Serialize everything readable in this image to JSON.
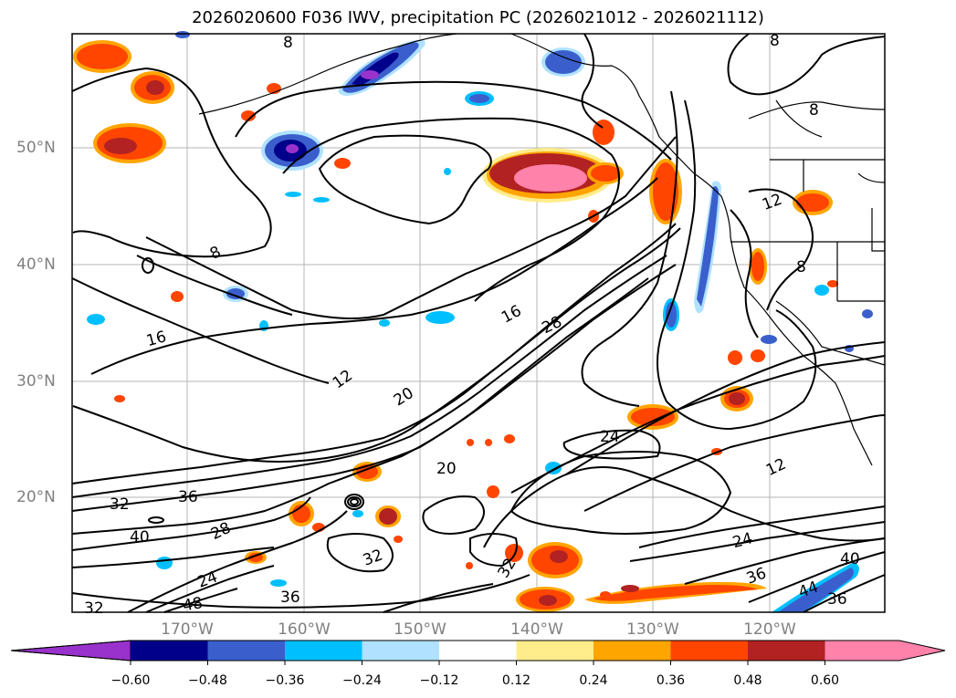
{
  "title": "2026020600 F036 IWV, precipitation PC (2026021012 - 2026021112)",
  "lat_labels": [
    "50°N",
    "40°N",
    "30°N",
    "20°N"
  ],
  "lon_labels": [
    "170°W",
    "160°W",
    "150°W",
    "140°W",
    "130°W",
    "120°W"
  ],
  "contour_labels": [
    "8",
    "8",
    "8",
    "8",
    "12",
    "12",
    "12",
    "16",
    "16",
    "20",
    "20",
    "24",
    "24",
    "28",
    "32",
    "32",
    "32",
    "32",
    "36",
    "36",
    "36",
    "40",
    "40",
    "44",
    "36",
    "24",
    "28",
    "48",
    "8"
  ],
  "colorbar": {
    "ticks": [
      "−0.60",
      "−0.48",
      "−0.36",
      "−0.24",
      "−0.12",
      "0.12",
      "0.24",
      "0.36",
      "0.48",
      "0.60"
    ],
    "colors": [
      "#9932cc",
      "#00008b",
      "#3a5fcd",
      "#00bfff",
      "#b0e2ff",
      "#ffffff",
      "#ffec8b",
      "#ffa500",
      "#ff4500",
      "#b22222",
      "#ff82ab"
    ]
  },
  "colors": {
    "pos_low": "#ffec8b",
    "pos_mid": "#ffa500",
    "pos_high": "#ff4500",
    "pos_higher": "#b22222",
    "pos_max": "#ff82ab",
    "neg_low": "#b0e2ff",
    "neg_mid": "#00bfff",
    "neg_high": "#3a5fcd",
    "neg_higher": "#00008b",
    "neg_max": "#9932cc"
  }
}
